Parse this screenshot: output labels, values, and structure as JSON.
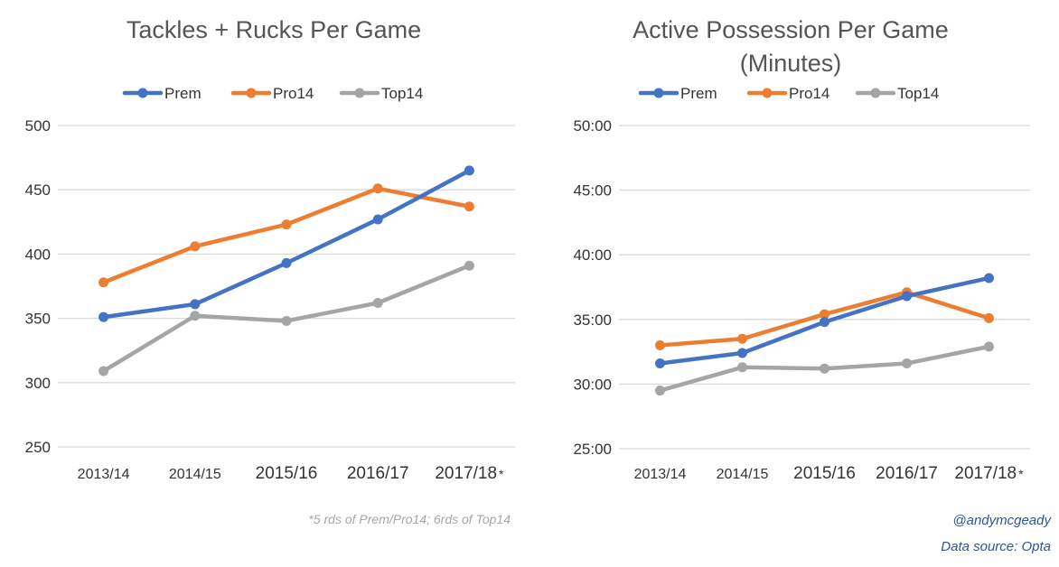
{
  "colors": {
    "Prem": "#4472c4",
    "Pro14": "#ed7d31",
    "Top14": "#a5a5a5"
  },
  "chart_data": [
    {
      "type": "line",
      "title": "Tackles + Rucks Per Game",
      "title_lines": [
        "Tackles + Rucks Per Game"
      ],
      "categories": [
        "2013/14",
        "2014/15",
        "2015/16",
        "2016/17",
        "2017/18"
      ],
      "category_marker": "*",
      "ylim": [
        250,
        500
      ],
      "yticks": [
        250,
        300,
        350,
        400,
        450,
        500
      ],
      "ytick_labels": [
        "250",
        "300",
        "350",
        "400",
        "450",
        "500"
      ],
      "grid": true,
      "legend_position": "top",
      "series": [
        {
          "name": "Prem",
          "values": [
            351,
            361,
            393,
            427,
            465
          ]
        },
        {
          "name": "Pro14",
          "values": [
            378,
            406,
            423,
            451,
            437
          ]
        },
        {
          "name": "Top14",
          "values": [
            309,
            352,
            348,
            362,
            391
          ]
        }
      ],
      "footnote": "*5 rds of Prem/Pro14; 6rds of Top14"
    },
    {
      "type": "line",
      "title": "Active Possession Per Game (Minutes)",
      "title_lines": [
        "Active Possession Per Game",
        "(Minutes)"
      ],
      "categories": [
        "2013/14",
        "2014/15",
        "2015/16",
        "2016/17",
        "2017/18"
      ],
      "category_marker": "*",
      "ylim": [
        25,
        50
      ],
      "yticks": [
        25,
        30,
        35,
        40,
        45,
        50
      ],
      "ytick_labels": [
        "25:00",
        "30:00",
        "35:00",
        "40:00",
        "45:00",
        "50:00"
      ],
      "grid": true,
      "legend_position": "top",
      "series": [
        {
          "name": "Prem",
          "values": [
            31.6,
            32.4,
            34.8,
            36.8,
            38.2
          ]
        },
        {
          "name": "Pro14",
          "values": [
            33.0,
            33.5,
            35.4,
            37.1,
            35.1
          ]
        },
        {
          "name": "Top14",
          "values": [
            29.5,
            31.3,
            31.2,
            31.6,
            32.9
          ]
        }
      ]
    }
  ],
  "credits": {
    "author": "@andymcgeady",
    "source": "Data source: Opta"
  }
}
